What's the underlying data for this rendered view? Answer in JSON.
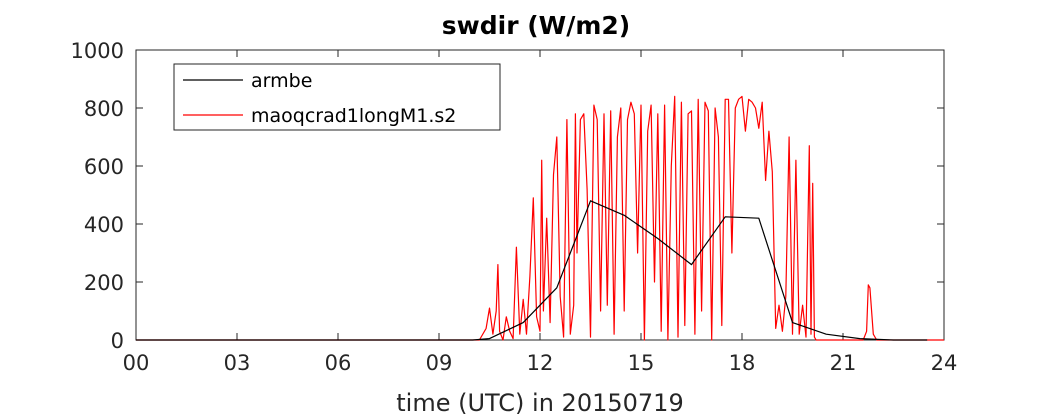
{
  "chart_data": {
    "type": "line",
    "title": "swdir  (W/m2)",
    "xlabel": "time (UTC) in 20150719",
    "ylabel": "",
    "xlim": [
      0,
      24
    ],
    "ylim": [
      0,
      1000
    ],
    "x_ticks": [
      0,
      3,
      6,
      9,
      12,
      15,
      18,
      21,
      24
    ],
    "x_tick_labels": [
      "00",
      "03",
      "06",
      "09",
      "12",
      "15",
      "18",
      "21",
      "24"
    ],
    "y_ticks": [
      0,
      200,
      400,
      600,
      800,
      1000
    ],
    "y_tick_labels": [
      "0",
      "200",
      "400",
      "600",
      "800",
      "1000"
    ],
    "grid": false,
    "legend_position": "top-left",
    "series": [
      {
        "name": "armbe",
        "color": "#000000",
        "x": [
          0,
          1,
          2,
          3,
          4,
          5,
          6,
          7,
          8,
          9,
          10,
          10.5,
          11.5,
          12.5,
          13.5,
          14.5,
          15.5,
          16.5,
          17.5,
          18.5,
          19.5,
          20.5,
          21.5,
          22.5,
          23.5
        ],
        "y": [
          0,
          0,
          0,
          0,
          0,
          0,
          0,
          0,
          0,
          0,
          0,
          5,
          60,
          180,
          480,
          430,
          350,
          260,
          425,
          420,
          60,
          20,
          5,
          0,
          0
        ]
      },
      {
        "name": "maoqcrad1longM1.s2",
        "color": "#ff0000",
        "x": [
          0,
          10.2,
          10.4,
          10.5,
          10.6,
          10.7,
          10.75,
          10.8,
          10.9,
          11.0,
          11.1,
          11.2,
          11.3,
          11.4,
          11.5,
          11.6,
          11.7,
          11.8,
          11.9,
          12.0,
          12.05,
          12.1,
          12.2,
          12.3,
          12.4,
          12.5,
          12.6,
          12.7,
          12.8,
          12.9,
          13.0,
          13.05,
          13.1,
          13.2,
          13.3,
          13.4,
          13.5,
          13.6,
          13.7,
          13.8,
          13.9,
          14.0,
          14.1,
          14.2,
          14.3,
          14.4,
          14.5,
          14.6,
          14.7,
          14.8,
          14.9,
          15.0,
          15.1,
          15.2,
          15.3,
          15.4,
          15.5,
          15.6,
          15.7,
          15.8,
          15.9,
          16.0,
          16.1,
          16.2,
          16.3,
          16.4,
          16.5,
          16.6,
          16.7,
          16.8,
          16.9,
          17.0,
          17.1,
          17.2,
          17.3,
          17.4,
          17.5,
          17.6,
          17.7,
          17.8,
          17.9,
          18.0,
          18.1,
          18.2,
          18.3,
          18.4,
          18.5,
          18.6,
          18.7,
          18.8,
          18.9,
          19.0,
          19.1,
          19.2,
          19.3,
          19.4,
          19.5,
          19.6,
          19.7,
          19.8,
          19.9,
          20.0,
          20.05,
          20.1,
          20.15,
          20.2,
          20.3,
          21.6,
          21.7,
          21.75,
          21.8,
          21.9,
          22.0,
          24
        ],
        "y": [
          0,
          0,
          40,
          110,
          20,
          100,
          260,
          30,
          0,
          80,
          30,
          5,
          320,
          20,
          140,
          20,
          220,
          490,
          80,
          30,
          620,
          100,
          420,
          60,
          570,
          700,
          150,
          10,
          760,
          20,
          120,
          780,
          300,
          760,
          780,
          520,
          10,
          810,
          760,
          100,
          780,
          120,
          790,
          20,
          700,
          800,
          100,
          760,
          820,
          780,
          300,
          810,
          0,
          720,
          810,
          200,
          780,
          30,
          810,
          0,
          600,
          840,
          10,
          820,
          50,
          780,
          790,
          20,
          830,
          100,
          820,
          790,
          0,
          800,
          700,
          50,
          830,
          830,
          300,
          800,
          830,
          840,
          720,
          830,
          820,
          800,
          730,
          820,
          550,
          720,
          580,
          40,
          120,
          30,
          150,
          700,
          20,
          620,
          20,
          120,
          10,
          670,
          20,
          540,
          10,
          0,
          0,
          0,
          30,
          190,
          180,
          20,
          0,
          0
        ]
      }
    ]
  }
}
